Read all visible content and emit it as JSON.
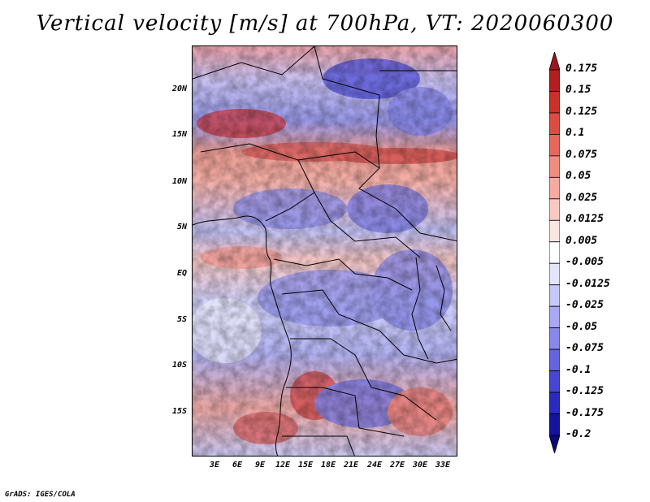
{
  "title": "Vertical velocity [m/s] at 700hPa, VT: 2020060300",
  "credit": "GrADS: IGES/COLA",
  "y_ticks": [
    "20N",
    "15N",
    "10N",
    "5N",
    "EQ",
    "5S",
    "10S",
    "15S"
  ],
  "x_ticks": [
    "3E",
    "6E",
    "9E",
    "12E",
    "15E",
    "18E",
    "21E",
    "24E",
    "27E",
    "30E",
    "33E"
  ],
  "colorbar": {
    "labels": [
      "0.175",
      "0.15",
      "0.125",
      "0.1",
      "0.075",
      "0.05",
      "0.025",
      "0.0125",
      "0.005",
      "-0.005",
      "-0.0125",
      "-0.025",
      "-0.05",
      "-0.075",
      "-0.1",
      "-0.125",
      "-0.175",
      "-0.2"
    ],
    "colors": [
      "#a0141e",
      "#b41e1e",
      "#c83228",
      "#dc4c40",
      "#e6675c",
      "#f08c80",
      "#f6aaa0",
      "#facac2",
      "#fde6e2",
      "#ffffff",
      "#e4e4fc",
      "#c8c8f8",
      "#a8a8f4",
      "#8888ec",
      "#6464e0",
      "#4646d2",
      "#2a2abe",
      "#14149c",
      "#0a0a78"
    ]
  }
}
